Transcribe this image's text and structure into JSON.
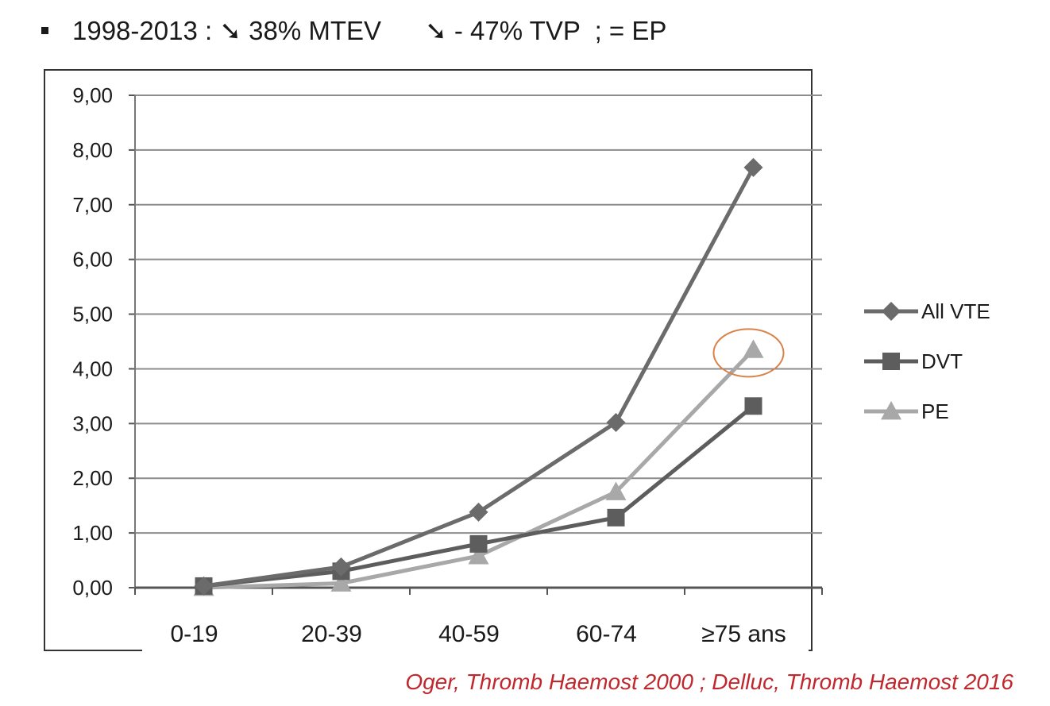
{
  "header": {
    "part1": "1998-2013 : ",
    "arrow1": "➘",
    "part2": " 38% MTEV      ",
    "arrow2": "➘",
    "part3": " - 47% TVP  ; = EP"
  },
  "citation": "Oger, Thromb Haemost  2000 ; Delluc, Thromb Haemost 2016",
  "colors": {
    "all_vte": "#6b6b6b",
    "dvt": "#5d5d5d",
    "pe": "#a8a8a8",
    "highlight_circle": "#d9834a",
    "grid": "#8c8c8c"
  },
  "chart_data": {
    "type": "line",
    "categories": [
      "0-19",
      "20-39",
      "40-59",
      "60-74",
      "≥75 ans"
    ],
    "ylim": [
      0,
      9
    ],
    "yticks": [
      "0,00",
      "1,00",
      "2,00",
      "3,00",
      "4,00",
      "5,00",
      "6,00",
      "7,00",
      "8,00",
      "9,00"
    ],
    "grid": true,
    "legend_position": "right",
    "series": [
      {
        "name": "All VTE",
        "marker": "diamond",
        "values": [
          0.03,
          0.38,
          1.38,
          3.02,
          7.68
        ]
      },
      {
        "name": "DVT",
        "marker": "square",
        "values": [
          0.03,
          0.3,
          0.8,
          1.28,
          3.32
        ]
      },
      {
        "name": "PE",
        "marker": "triangle",
        "values": [
          0.0,
          0.08,
          0.58,
          1.75,
          4.35
        ]
      }
    ],
    "annotations": [
      {
        "type": "circle",
        "series": "PE",
        "category": "≥75 ans"
      }
    ]
  }
}
